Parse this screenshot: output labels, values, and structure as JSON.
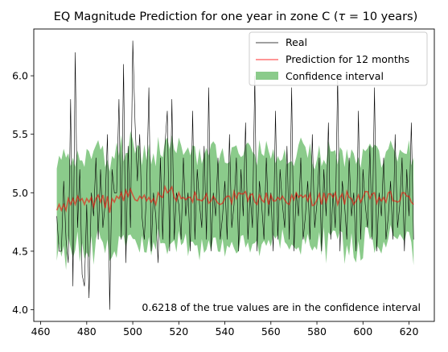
{
  "chart_data": {
    "type": "line",
    "title_prefix": "EQ Magnitude Prediction for one year in zone C (",
    "title_tau": "τ",
    "title_suffix": " = 10 years)",
    "xlim": [
      457,
      631
    ],
    "ylim": [
      3.9,
      6.4
    ],
    "x_ticks": [
      460,
      480,
      500,
      520,
      540,
      560,
      580,
      600,
      620
    ],
    "x_tick_labels": [
      "460",
      "480",
      "500",
      "520",
      "540",
      "560",
      "580",
      "600",
      "620"
    ],
    "y_ticks": [
      4.0,
      4.5,
      5.0,
      5.5,
      6.0
    ],
    "y_tick_labels": [
      "4.0",
      "4.5",
      "5.0",
      "5.5",
      "6.0"
    ],
    "x_start": 467,
    "x_end": 622,
    "legend": {
      "position": "upper right",
      "entries": [
        {
          "key": "real",
          "label": "Real"
        },
        {
          "key": "prediction",
          "label": "Prediction for 12 months"
        },
        {
          "key": "ci",
          "label": "Confidence interval"
        }
      ]
    },
    "annotation": "0.6218 of the true values are in the confidence interval",
    "colors": {
      "real": "#000000",
      "prediction": "#ff0000",
      "ci": "#2ca02c"
    },
    "series": [
      {
        "name": "Real",
        "anchors": [
          [
            467,
            4.8
          ],
          [
            468,
            4.5
          ],
          [
            469,
            4.5
          ],
          [
            470,
            5.1
          ],
          [
            471,
            4.6
          ],
          [
            472,
            4.4
          ],
          [
            473,
            5.8
          ],
          [
            474,
            4.2
          ],
          [
            475,
            6.2
          ],
          [
            476,
            4.7
          ],
          [
            477,
            5.2
          ],
          [
            478,
            4.3
          ],
          [
            479,
            4.2
          ],
          [
            480,
            4.9
          ],
          [
            481,
            4.1
          ],
          [
            482,
            5.0
          ],
          [
            483,
            4.8
          ],
          [
            484,
            5.3
          ],
          [
            485,
            4.6
          ],
          [
            486,
            5.2
          ],
          [
            487,
            4.7
          ],
          [
            488,
            4.9
          ],
          [
            489,
            5.5
          ],
          [
            490,
            4.0
          ],
          [
            491,
            5.2
          ],
          [
            492,
            5.0
          ],
          [
            493,
            5.0
          ],
          [
            494,
            5.8
          ],
          [
            495,
            4.6
          ],
          [
            496,
            6.1
          ],
          [
            497,
            4.4
          ],
          [
            498,
            5.4
          ],
          [
            499,
            4.7
          ],
          [
            500,
            6.3
          ],
          [
            501,
            5.6
          ],
          [
            502,
            5.1
          ],
          [
            503,
            5.5
          ],
          [
            504,
            4.8
          ],
          [
            505,
            4.6
          ],
          [
            506,
            5.0
          ],
          [
            507,
            5.9
          ],
          [
            508,
            4.5
          ],
          [
            509,
            5.0
          ],
          [
            510,
            4.8
          ],
          [
            511,
            4.4
          ],
          [
            512,
            5.3
          ],
          [
            513,
            4.6
          ],
          [
            514,
            5.4
          ],
          [
            515,
            5.7
          ],
          [
            516,
            4.5
          ],
          [
            517,
            5.8
          ],
          [
            518,
            4.6
          ],
          [
            519,
            5.0
          ],
          [
            520,
            4.9
          ]
        ],
        "cycle": [
          4.8,
          5.1,
          4.6,
          5.5,
          4.7,
          4.9,
          5.3,
          4.5,
          5.2,
          4.8,
          5.6,
          4.6,
          5.0,
          4.7,
          6.0,
          4.5,
          5.1,
          4.9,
          4.6,
          5.3,
          4.8,
          5.0,
          4.5,
          5.7,
          4.6,
          5.2,
          4.9,
          4.7,
          5.4,
          4.6,
          5.9,
          4.5,
          5.0,
          4.8,
          5.3,
          4.6
        ]
      },
      {
        "name": "Prediction for 12 months",
        "base": 4.95,
        "anchors": [
          [
            467,
            4.85
          ],
          [
            468,
            4.9
          ],
          [
            469,
            4.85
          ],
          [
            470,
            4.9
          ],
          [
            471,
            4.85
          ],
          [
            472,
            4.95
          ],
          [
            473,
            4.9
          ],
          [
            474,
            4.95
          ],
          [
            475,
            4.9
          ],
          [
            476,
            4.97
          ],
          [
            477,
            4.93
          ],
          [
            478,
            4.95
          ],
          [
            479,
            4.9
          ],
          [
            480,
            4.95
          ],
          [
            481,
            4.92
          ],
          [
            482,
            4.96
          ],
          [
            483,
            4.88
          ],
          [
            484,
            4.95
          ],
          [
            485,
            4.98
          ],
          [
            486,
            4.92
          ],
          [
            487,
            4.98
          ],
          [
            488,
            4.87
          ],
          [
            489,
            4.97
          ],
          [
            490,
            4.83
          ],
          [
            491,
            4.95
          ],
          [
            492,
            4.92
          ],
          [
            493,
            4.97
          ],
          [
            494,
            4.95
          ],
          [
            495,
            5.0
          ],
          [
            496,
            4.93
          ],
          [
            497,
            5.02
          ],
          [
            498,
            4.97
          ],
          [
            499,
            5.03
          ],
          [
            500,
            4.98
          ],
          [
            501,
            4.94
          ],
          [
            502,
            4.93
          ],
          [
            503,
            4.97
          ],
          [
            504,
            4.95
          ],
          [
            505,
            4.98
          ],
          [
            506,
            4.93
          ],
          [
            507,
            4.96
          ],
          [
            508,
            4.92
          ],
          [
            509,
            4.95
          ],
          [
            510,
            4.9
          ],
          [
            511,
            5.0
          ],
          [
            512,
            4.97
          ],
          [
            513,
            4.96
          ],
          [
            514,
            5.05
          ],
          [
            515,
            5.0
          ],
          [
            516,
            5.02
          ],
          [
            517,
            5.05
          ],
          [
            518,
            4.96
          ],
          [
            519,
            4.93
          ]
        ]
      }
    ]
  }
}
